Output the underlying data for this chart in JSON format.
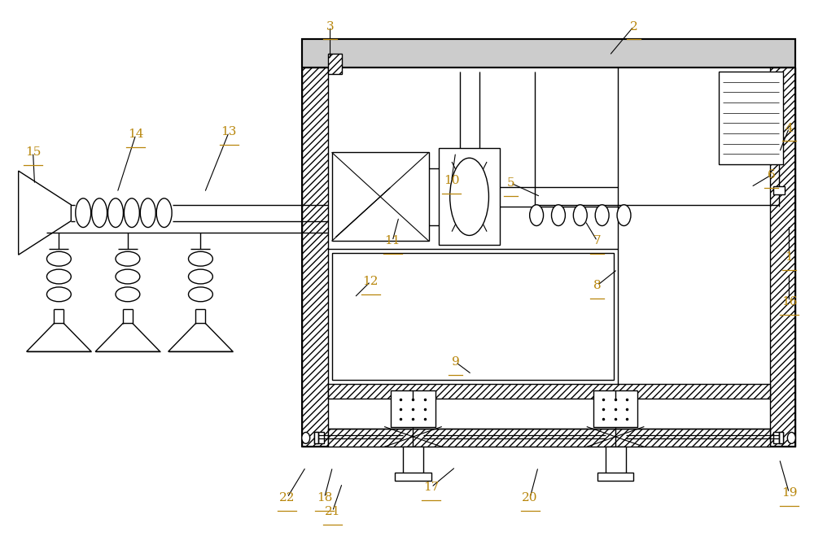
{
  "bg_color": "#ffffff",
  "line_color": "#000000",
  "label_color": "#b8860b",
  "label_fontsize": 11,
  "figsize": [
    10.0,
    6.86
  ],
  "dpi": 100
}
